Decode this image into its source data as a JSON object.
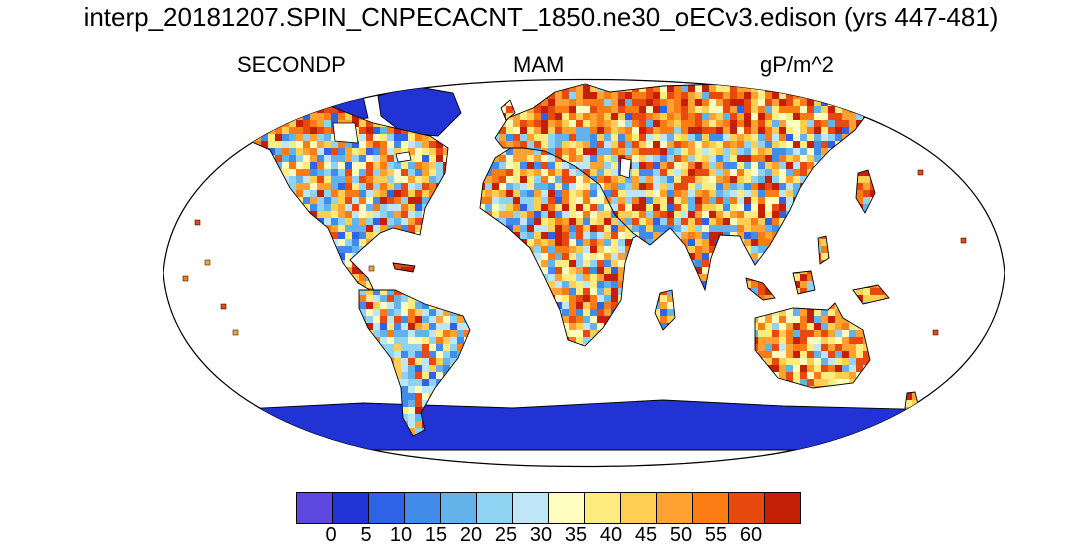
{
  "title": "interp_20181207.SPIN_CNPECACNT_1850.ne30_oECv3.edison (yrs 447-481)",
  "header_labels": {
    "left": "SECONDP",
    "center": "MAM",
    "right": "gP/m^2"
  },
  "chart_data": {
    "type": "heatmap",
    "subtype": "global-map-robinson-projection",
    "title": "interp_20181207.SPIN_CNPECACNT_1850.ne30_oECv3.edison (yrs 447-481)",
    "variable": "SECONDP",
    "season": "MAM",
    "units": "gP/m^2",
    "ocean_fill": "#ffffff",
    "coastline_color": "#000000",
    "colorbar": {
      "orientation": "horizontal",
      "levels": [
        0,
        5,
        10,
        15,
        20,
        25,
        30,
        35,
        40,
        45,
        50,
        55,
        60
      ],
      "tick_labels": [
        "0",
        "5",
        "10",
        "15",
        "20",
        "25",
        "30",
        "35",
        "40",
        "45",
        "50",
        "55",
        "60"
      ],
      "colors": [
        "#5E48E0",
        "#2233D6",
        "#2F62E6",
        "#418CE8",
        "#63B3EA",
        "#90D2F2",
        "#BEE6F7",
        "#FFFCC0",
        "#FFEC80",
        "#FFCE52",
        "#FFA232",
        "#FB7B14",
        "#E8490E",
        "#C42008"
      ]
    },
    "pattern_summary": {
      "ice_sheets": "uniform low values (dark blue, <=5) over Greenland, Canadian Arctic islands and Antarctica",
      "high_value_regions": "orange-red speckle across northern Eurasia, boreal North America, Sahel/North Africa, East Asia and Australia",
      "low_mid_value_regions": "blue and light-blue speckle over the Amazon basin, Congo basin, central North America and parts of central Asia",
      "oceans": "no data (white)"
    }
  }
}
